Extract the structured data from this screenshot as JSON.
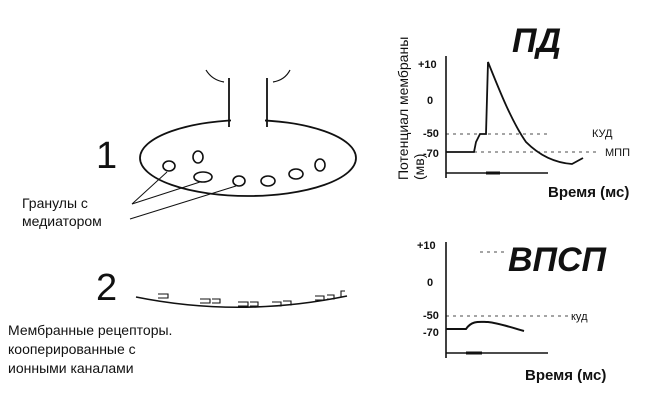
{
  "left": {
    "step1_label": "1",
    "step2_label": "2",
    "granules_label": [
      "Гранулы с",
      "медиатором"
    ],
    "receptors_label": [
      "Мембранные рецепторы.",
      "кооперированные с",
      "ионными каналами"
    ]
  },
  "pd_chart": {
    "title": "ПД",
    "ylabel_lines": [
      "Потенциал мембраны",
      "(мв)"
    ],
    "xlabel": "Время (мс)",
    "ticks": [
      "+10",
      "0",
      "-50",
      "-70"
    ],
    "kud_label": "КУД",
    "mpp_label": "МПП"
  },
  "vpsp_chart": {
    "title": "ВПСП",
    "xlabel": "Время (мс)",
    "ticks": [
      "+10",
      "0",
      "-50",
      "-70"
    ],
    "kud_label": "куд"
  }
}
